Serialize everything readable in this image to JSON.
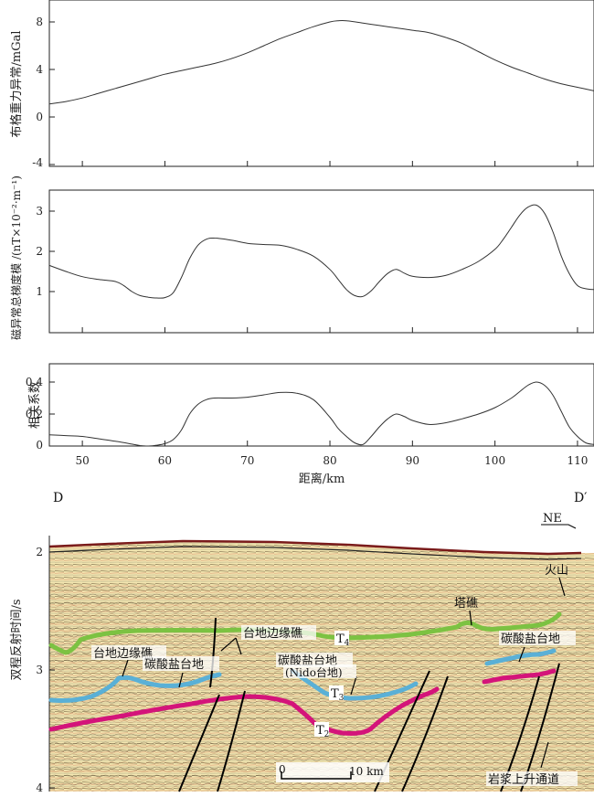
{
  "x_axis": {
    "label": "距离/km",
    "ticks": [
      "50",
      "60",
      "70",
      "80",
      "90",
      "100",
      "110"
    ],
    "range": [
      46,
      112
    ]
  },
  "chart_data": [
    {
      "type": "line",
      "ylabel": "布格重力异常/mGal",
      "ylim": [
        -4,
        10
      ],
      "yticks": [
        "8",
        "4",
        "0",
        "-4"
      ],
      "series": [
        {
          "x": [
            46,
            48,
            50,
            52,
            54,
            56,
            58,
            60,
            62,
            64,
            66,
            68,
            70,
            72,
            74,
            76,
            78,
            80,
            81,
            82,
            84,
            86,
            88,
            90,
            92,
            94,
            96,
            98,
            100,
            102,
            104,
            106,
            108,
            110,
            112
          ],
          "values": [
            1.1,
            1.3,
            1.6,
            2.0,
            2.4,
            2.8,
            3.2,
            3.6,
            3.9,
            4.2,
            4.5,
            4.9,
            5.4,
            6.0,
            6.6,
            7.1,
            7.6,
            8.0,
            8.1,
            8.1,
            7.9,
            7.7,
            7.5,
            7.3,
            7.1,
            6.7,
            6.2,
            5.5,
            4.8,
            4.2,
            3.7,
            3.2,
            2.8,
            2.5,
            2.2
          ]
        }
      ]
    },
    {
      "type": "line",
      "ylabel": "磁异常总梯度模 /(nT×10⁻²·m⁻¹)",
      "ylim": [
        0,
        3.5
      ],
      "yticks": [
        "3",
        "2",
        "1"
      ],
      "series": [
        {
          "x": [
            46,
            48,
            50,
            52,
            54,
            55,
            56,
            57,
            58,
            59,
            60,
            61,
            62,
            63,
            64,
            65,
            66,
            68,
            70,
            72,
            74,
            76,
            78,
            80,
            81,
            82,
            83,
            84,
            85,
            86,
            87,
            88,
            89,
            90,
            92,
            94,
            96,
            98,
            100,
            101,
            102,
            103,
            104,
            105,
            106,
            107,
            108,
            109,
            110,
            111,
            112
          ],
          "values": [
            1.65,
            1.5,
            1.37,
            1.3,
            1.25,
            1.15,
            1.0,
            0.9,
            0.86,
            0.84,
            0.85,
            0.97,
            1.35,
            1.82,
            2.15,
            2.3,
            2.33,
            2.28,
            2.2,
            2.17,
            2.15,
            2.05,
            1.88,
            1.55,
            1.3,
            1.05,
            0.9,
            0.88,
            1.02,
            1.25,
            1.45,
            1.55,
            1.46,
            1.38,
            1.35,
            1.4,
            1.55,
            1.75,
            2.05,
            2.3,
            2.6,
            2.9,
            3.1,
            3.15,
            2.95,
            2.5,
            1.9,
            1.45,
            1.15,
            1.07,
            1.05
          ]
        }
      ]
    },
    {
      "type": "line",
      "ylabel": "相关系数",
      "ylim": [
        0,
        0.5
      ],
      "yticks": [
        "0.4",
        "0.2",
        "0"
      ],
      "series": [
        {
          "x": [
            46,
            48,
            50,
            52,
            54,
            56,
            57,
            58,
            59,
            60,
            61,
            62,
            63,
            64,
            65,
            66,
            68,
            70,
            72,
            74,
            76,
            78,
            80,
            81,
            82,
            83,
            84,
            85,
            86,
            87,
            88,
            89,
            90,
            92,
            94,
            96,
            98,
            100,
            102,
            103,
            104,
            105,
            106,
            107,
            108,
            109,
            110,
            111,
            112
          ],
          "values": [
            0.07,
            0.065,
            0.06,
            0.045,
            0.03,
            0.012,
            0.003,
            0.0,
            0.005,
            0.015,
            0.04,
            0.1,
            0.2,
            0.26,
            0.29,
            0.3,
            0.3,
            0.305,
            0.32,
            0.335,
            0.33,
            0.29,
            0.18,
            0.11,
            0.06,
            0.02,
            0.01,
            0.06,
            0.12,
            0.17,
            0.2,
            0.185,
            0.16,
            0.135,
            0.145,
            0.17,
            0.2,
            0.24,
            0.3,
            0.34,
            0.38,
            0.4,
            0.38,
            0.32,
            0.22,
            0.12,
            0.06,
            0.02,
            0.01
          ]
        }
      ]
    },
    {
      "type": "seismic-section",
      "ylabel": "双程反射时间/s",
      "ylim": [
        4,
        1.8
      ],
      "yticks": [
        "2",
        "3",
        "4"
      ],
      "corner_labels": {
        "left": "D",
        "right": "D′"
      },
      "direction": "NE",
      "scale_bar": {
        "start": "0",
        "end": "10 km"
      },
      "horizon_labels": {
        "t2": "T",
        "t2_sub": "2",
        "t3": "T",
        "t3_sub": "3",
        "t4": "T",
        "t4_sub": "4"
      },
      "annotations": {
        "reef_left": "台地边缘礁",
        "carbonate_left": "碳酸盐台地",
        "reef_mid": "台地边缘礁",
        "carbonate_mid": "碳酸盐台地",
        "nido": "(Nido台地)",
        "tower_reef": "塔礁",
        "volcano": "火山",
        "carbonate_right": "碳酸盐台地",
        "magma_channel": "岩浆上升通道"
      },
      "horizon_colors": {
        "green": "#7cc242",
        "blue": "#5ab0d6",
        "magenta": "#d4147a"
      }
    }
  ]
}
